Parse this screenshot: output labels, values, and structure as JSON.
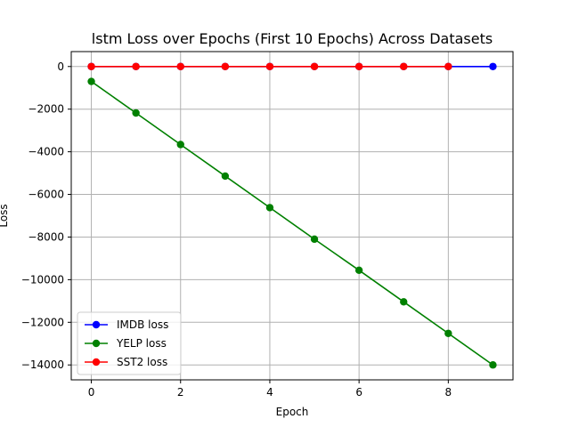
{
  "chart_data": {
    "type": "line",
    "title": "lstm Loss over Epochs (First 10 Epochs) Across Datasets",
    "xlabel": "Epoch",
    "ylabel": "Loss",
    "xlim": [
      -0.45,
      9.45
    ],
    "ylim": [
      -14700,
      700
    ],
    "xticks": [
      0,
      2,
      4,
      6,
      8
    ],
    "yticks": [
      0,
      -2000,
      -4000,
      -6000,
      -8000,
      -10000,
      -12000,
      -14000
    ],
    "grid": true,
    "legend_position": "lower-left",
    "series": [
      {
        "name": "IMDB loss",
        "color": "#0000ff",
        "x": [
          0,
          1,
          2,
          3,
          4,
          5,
          6,
          7,
          8,
          9
        ],
        "values": [
          0,
          0,
          0,
          0,
          0,
          0,
          0,
          0,
          0,
          0
        ]
      },
      {
        "name": "YELP loss",
        "color": "#008000",
        "x": [
          0,
          1,
          2,
          3,
          4,
          5,
          6,
          7,
          8,
          9
        ],
        "values": [
          -700,
          -2180,
          -3660,
          -5140,
          -6620,
          -8100,
          -9560,
          -11040,
          -12520,
          -14000
        ]
      },
      {
        "name": "SST2 loss",
        "color": "#ff0000",
        "x": [
          0,
          1,
          2,
          3,
          4,
          5,
          6,
          7,
          8
        ],
        "values": [
          0,
          0,
          0,
          0,
          0,
          0,
          0,
          0,
          0
        ]
      }
    ]
  }
}
